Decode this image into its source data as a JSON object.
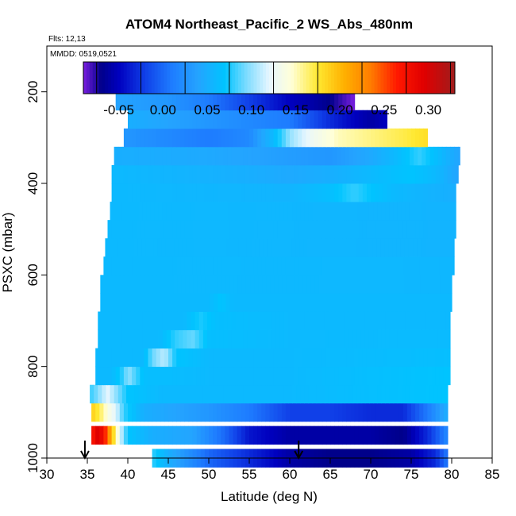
{
  "chart_data": {
    "type": "heatmap",
    "title": "ATOM4 Northeast_Pacific_2 WS_Abs_480nm",
    "flights_note": "Flts: 12,13",
    "date_note": "MMDD: 0519,0521",
    "xlabel": "Latitude (deg N)",
    "ylabel": "PSXC (mbar)",
    "xlim": [
      30,
      85
    ],
    "ylim": [
      1000,
      100
    ],
    "y_reversed": true,
    "x_ticks": [
      30,
      35,
      40,
      45,
      50,
      55,
      60,
      65,
      70,
      75,
      80,
      85
    ],
    "y_ticks": [
      200,
      400,
      600,
      800,
      1000
    ],
    "grid": false,
    "colorbar": {
      "placement": "top",
      "vmin": -0.09,
      "vmax": 0.33,
      "tick_values": [
        -0.05,
        0.0,
        0.05,
        0.1,
        0.15,
        0.2,
        0.25,
        0.3
      ],
      "tick_labels": [
        "-0.05",
        "0.00",
        "0.05",
        "0.10",
        "0.15",
        "0.20",
        "0.25",
        "0.30"
      ],
      "stops": [
        {
          "v": -0.09,
          "c": "#7b1fe0"
        },
        {
          "v": -0.07,
          "c": "#00008a"
        },
        {
          "v": -0.05,
          "c": "#0000bf"
        },
        {
          "v": -0.02,
          "c": "#1040e8"
        },
        {
          "v": 0.01,
          "c": "#1e7cff"
        },
        {
          "v": 0.04,
          "c": "#24a4ff"
        },
        {
          "v": 0.07,
          "c": "#00c4ff"
        },
        {
          "v": 0.095,
          "c": "#7fdcff"
        },
        {
          "v": 0.12,
          "c": "#e6f6ff"
        },
        {
          "v": 0.145,
          "c": "#ffffd8"
        },
        {
          "v": 0.175,
          "c": "#ffe830"
        },
        {
          "v": 0.205,
          "c": "#ffb000"
        },
        {
          "v": 0.235,
          "c": "#ff7c00"
        },
        {
          "v": 0.265,
          "c": "#ff1800"
        },
        {
          "v": 0.295,
          "c": "#e00000"
        },
        {
          "v": 0.33,
          "c": "#a01c1c"
        }
      ]
    },
    "flight_markers": [
      34.7,
      61.1
    ],
    "rows": [
      {
        "p": 1000,
        "lat_min": 43.0,
        "lat_max": 79.5,
        "profile": [
          [
            43,
            0.08
          ],
          [
            45,
            0.05
          ],
          [
            50,
            0.0
          ],
          [
            55,
            -0.03
          ],
          [
            60,
            -0.06
          ],
          [
            65,
            -0.07
          ],
          [
            70,
            -0.07
          ],
          [
            75,
            -0.06
          ],
          [
            78,
            -0.03
          ],
          [
            79.5,
            0.01
          ]
        ]
      },
      {
        "p": 950,
        "lat_min": 35.5,
        "lat_max": 79.5,
        "profile": [
          [
            35.5,
            0.25
          ],
          [
            36,
            0.3
          ],
          [
            37,
            0.28
          ],
          [
            38,
            0.2
          ],
          [
            39,
            0.12
          ],
          [
            40,
            0.07
          ],
          [
            43,
            0.05
          ],
          [
            48,
            0.04
          ],
          [
            52,
            0.0
          ],
          [
            55,
            -0.04
          ],
          [
            60,
            -0.06
          ],
          [
            65,
            -0.06
          ],
          [
            70,
            -0.06
          ],
          [
            74,
            -0.07
          ],
          [
            77,
            -0.03
          ],
          [
            79.5,
            0.02
          ]
        ]
      },
      {
        "p": 900,
        "lat_min": 35.5,
        "lat_max": 79.5,
        "profile": [
          [
            35.5,
            0.19
          ],
          [
            36.5,
            0.17
          ],
          [
            37.5,
            0.14
          ],
          [
            38.5,
            0.12
          ],
          [
            39.5,
            0.08
          ],
          [
            42,
            0.05
          ],
          [
            50,
            0.03
          ],
          [
            55,
            0.01
          ],
          [
            60,
            -0.02
          ],
          [
            65,
            -0.02
          ],
          [
            70,
            -0.03
          ],
          [
            74,
            -0.03
          ],
          [
            77,
            0.01
          ],
          [
            79.5,
            0.05
          ]
        ]
      },
      {
        "p": 860,
        "lat_min": 35.3,
        "lat_max": 79.5,
        "profile": [
          [
            35.3,
            0.08
          ],
          [
            36,
            0.09
          ],
          [
            37.5,
            0.12
          ],
          [
            38.5,
            0.1
          ],
          [
            40,
            0.07
          ],
          [
            44,
            0.06
          ],
          [
            50,
            0.06
          ],
          [
            60,
            0.06
          ],
          [
            70,
            0.065
          ],
          [
            79.5,
            0.07
          ]
        ]
      },
      {
        "p": 820,
        "lat_min": 36.0,
        "lat_max": 79.8,
        "profile": [
          [
            36,
            0.06
          ],
          [
            38,
            0.06
          ],
          [
            39.5,
            0.08
          ],
          [
            40,
            0.1
          ],
          [
            42,
            0.065
          ],
          [
            50,
            0.06
          ],
          [
            60,
            0.06
          ],
          [
            70,
            0.065
          ],
          [
            79.8,
            0.07
          ]
        ]
      },
      {
        "p": 780,
        "lat_min": 36.0,
        "lat_max": 79.8,
        "profile": [
          [
            36,
            0.06
          ],
          [
            42,
            0.06
          ],
          [
            43,
            0.09
          ],
          [
            44.5,
            0.11
          ],
          [
            46,
            0.07
          ],
          [
            50,
            0.06
          ],
          [
            60,
            0.06
          ],
          [
            79.8,
            0.065
          ]
        ]
      },
      {
        "p": 740,
        "lat_min": 36.3,
        "lat_max": 79.8,
        "profile": [
          [
            36.3,
            0.06
          ],
          [
            44,
            0.06
          ],
          [
            46,
            0.08
          ],
          [
            48,
            0.09
          ],
          [
            50,
            0.065
          ],
          [
            60,
            0.06
          ],
          [
            79.8,
            0.062
          ]
        ]
      },
      {
        "p": 700,
        "lat_min": 36.3,
        "lat_max": 79.8,
        "profile": [
          [
            36.3,
            0.06
          ],
          [
            47,
            0.06
          ],
          [
            49,
            0.075
          ],
          [
            51,
            0.065
          ],
          [
            60,
            0.06
          ],
          [
            79.8,
            0.06
          ]
        ]
      },
      {
        "p": 660,
        "lat_min": 36.6,
        "lat_max": 80.0,
        "profile": [
          [
            36.6,
            0.06
          ],
          [
            50,
            0.06
          ],
          [
            51.5,
            0.07
          ],
          [
            53,
            0.06
          ],
          [
            80,
            0.06
          ]
        ]
      },
      {
        "p": 620,
        "lat_min": 36.6,
        "lat_max": 80.0,
        "profile": [
          [
            36.6,
            0.06
          ],
          [
            80,
            0.058
          ]
        ]
      },
      {
        "p": 580,
        "lat_min": 37.0,
        "lat_max": 80.3,
        "profile": [
          [
            37,
            0.06
          ],
          [
            80.3,
            0.058
          ]
        ]
      },
      {
        "p": 540,
        "lat_min": 37.2,
        "lat_max": 80.3,
        "profile": [
          [
            37.2,
            0.06
          ],
          [
            80.3,
            0.055
          ]
        ]
      },
      {
        "p": 500,
        "lat_min": 37.5,
        "lat_max": 80.5,
        "profile": [
          [
            37.5,
            0.06
          ],
          [
            80.5,
            0.055
          ]
        ]
      },
      {
        "p": 460,
        "lat_min": 37.8,
        "lat_max": 80.5,
        "profile": [
          [
            37.8,
            0.06
          ],
          [
            80.5,
            0.055
          ]
        ]
      },
      {
        "p": 420,
        "lat_min": 38.0,
        "lat_max": 80.5,
        "profile": [
          [
            38,
            0.06
          ],
          [
            60,
            0.055
          ],
          [
            65,
            0.065
          ],
          [
            68,
            0.08
          ],
          [
            70,
            0.07
          ],
          [
            73,
            0.06
          ],
          [
            80.5,
            0.05
          ]
        ]
      },
      {
        "p": 380,
        "lat_min": 38.0,
        "lat_max": 80.8,
        "profile": [
          [
            38,
            0.06
          ],
          [
            55,
            0.05
          ],
          [
            60,
            0.045
          ],
          [
            65,
            0.05
          ],
          [
            70,
            0.06
          ],
          [
            75,
            0.07
          ],
          [
            78,
            0.06
          ],
          [
            80.8,
            0.04
          ]
        ]
      },
      {
        "p": 340,
        "lat_min": 38.3,
        "lat_max": 81.0,
        "profile": [
          [
            38.3,
            0.05
          ],
          [
            50,
            0.045
          ],
          [
            55,
            0.04
          ],
          [
            60,
            0.035
          ],
          [
            65,
            0.03
          ],
          [
            70,
            0.045
          ],
          [
            73,
            0.06
          ],
          [
            76,
            0.08
          ],
          [
            78,
            0.065
          ],
          [
            81,
            0.04
          ]
        ]
      },
      {
        "p": 300,
        "lat_min": 39.5,
        "lat_max": 77.0,
        "profile": [
          [
            39.5,
            0.03
          ],
          [
            45,
            0.02
          ],
          [
            50,
            0.01
          ],
          [
            55,
            0.02
          ],
          [
            58,
            0.06
          ],
          [
            60,
            0.1
          ],
          [
            63,
            0.13
          ],
          [
            66,
            0.15
          ],
          [
            70,
            0.16
          ],
          [
            74,
            0.17
          ],
          [
            77,
            0.18
          ]
        ]
      },
      {
        "p": 260,
        "lat_min": 40.0,
        "lat_max": 72.0,
        "profile": [
          [
            40,
            0.05
          ],
          [
            45,
            0.04
          ],
          [
            50,
            0.03
          ],
          [
            55,
            0.02
          ],
          [
            60,
            0.01
          ],
          [
            65,
            -0.03
          ],
          [
            68,
            -0.05
          ],
          [
            70,
            -0.06
          ],
          [
            72,
            -0.05
          ]
        ]
      },
      {
        "p": 220,
        "lat_min": 38.5,
        "lat_max": 68.0,
        "profile": [
          [
            38.5,
            0.04
          ],
          [
            45,
            0.03
          ],
          [
            50,
            0.01
          ],
          [
            55,
            -0.02
          ],
          [
            60,
            -0.05
          ],
          [
            63,
            -0.06
          ],
          [
            65,
            -0.07
          ],
          [
            66.5,
            -0.08
          ],
          [
            68,
            -0.09
          ]
        ]
      }
    ]
  }
}
